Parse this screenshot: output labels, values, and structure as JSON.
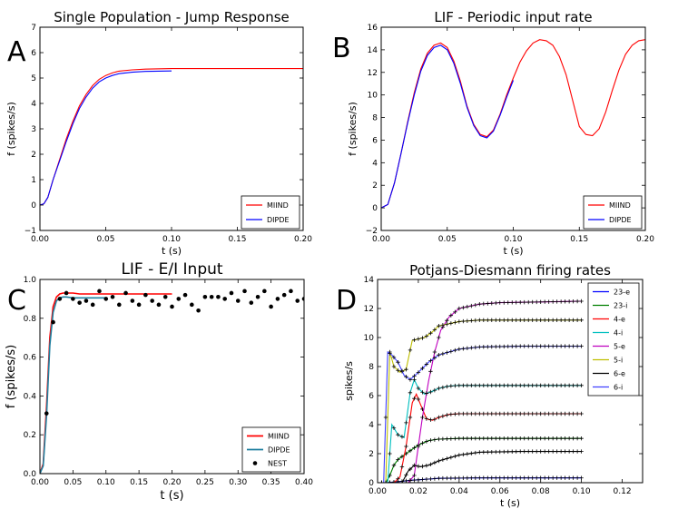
{
  "chart_data": [
    {
      "id": "A",
      "type": "line",
      "panel_label": "A",
      "title": "Single Population - Jump Response",
      "xlabel": "t (s)",
      "ylabel": "f (spikes/s)",
      "xlim": [
        0.0,
        0.2
      ],
      "ylim": [
        -1,
        7
      ],
      "xticks": [
        0.0,
        0.05,
        0.1,
        0.15,
        0.2
      ],
      "xtick_labels": [
        "0.00",
        "0.05",
        "0.10",
        "0.15",
        "0.20"
      ],
      "yticks": [
        -1,
        0,
        1,
        2,
        3,
        4,
        5,
        6,
        7
      ],
      "ytick_labels": [
        "−1",
        "0",
        "1",
        "2",
        "3",
        "4",
        "5",
        "6",
        "7"
      ],
      "legend_position": "bottom-right",
      "series": [
        {
          "name": "MIIND",
          "color": "#ff0000",
          "x": [
            0,
            0.003,
            0.006,
            0.01,
            0.015,
            0.02,
            0.025,
            0.03,
            0.035,
            0.04,
            0.045,
            0.05,
            0.055,
            0.06,
            0.07,
            0.08,
            0.1,
            0.12,
            0.15,
            0.2
          ],
          "y": [
            0,
            0.05,
            0.3,
            1.0,
            1.8,
            2.6,
            3.3,
            3.9,
            4.35,
            4.7,
            4.95,
            5.1,
            5.2,
            5.27,
            5.32,
            5.35,
            5.37,
            5.37,
            5.37,
            5.37
          ]
        },
        {
          "name": "DIPDE",
          "color": "#0000ff",
          "x": [
            0,
            0.003,
            0.006,
            0.01,
            0.015,
            0.02,
            0.025,
            0.03,
            0.035,
            0.04,
            0.045,
            0.05,
            0.055,
            0.06,
            0.07,
            0.08,
            0.09,
            0.1
          ],
          "y": [
            0,
            0.05,
            0.3,
            1.0,
            1.75,
            2.5,
            3.2,
            3.8,
            4.25,
            4.6,
            4.85,
            5.0,
            5.1,
            5.17,
            5.23,
            5.26,
            5.27,
            5.28
          ]
        }
      ]
    },
    {
      "id": "B",
      "type": "line",
      "panel_label": "B",
      "title": "LIF - Periodic input rate",
      "xlabel": "t (s)",
      "ylabel": "f (spikes/s)",
      "xlim": [
        0.0,
        0.2
      ],
      "ylim": [
        -2,
        16
      ],
      "xticks": [
        0.0,
        0.05,
        0.1,
        0.15,
        0.2
      ],
      "xtick_labels": [
        "0.00",
        "0.05",
        "0.10",
        "0.15",
        "0.20"
      ],
      "yticks": [
        -2,
        0,
        2,
        4,
        6,
        8,
        10,
        12,
        14,
        16
      ],
      "ytick_labels": [
        "−2",
        "0",
        "2",
        "4",
        "6",
        "8",
        "10",
        "12",
        "14",
        "16"
      ],
      "legend_position": "bottom-right",
      "series": [
        {
          "name": "MIIND",
          "color": "#ff0000",
          "x": [
            0,
            0.005,
            0.01,
            0.015,
            0.02,
            0.025,
            0.03,
            0.035,
            0.04,
            0.045,
            0.05,
            0.055,
            0.06,
            0.065,
            0.07,
            0.075,
            0.08,
            0.085,
            0.09,
            0.095,
            0.1,
            0.105,
            0.11,
            0.115,
            0.12,
            0.125,
            0.13,
            0.135,
            0.14,
            0.145,
            0.15,
            0.155,
            0.16,
            0.165,
            0.17,
            0.175,
            0.18,
            0.185,
            0.19,
            0.195,
            0.2
          ],
          "y": [
            0,
            0.3,
            2.2,
            4.8,
            7.6,
            10.2,
            12.3,
            13.7,
            14.4,
            14.6,
            14.2,
            13.0,
            11.2,
            9.0,
            7.4,
            6.5,
            6.3,
            6.9,
            8.3,
            10.0,
            11.5,
            12.9,
            13.9,
            14.6,
            14.9,
            14.8,
            14.4,
            13.4,
            11.8,
            9.5,
            7.2,
            6.5,
            6.4,
            7.0,
            8.5,
            10.4,
            12.2,
            13.6,
            14.4,
            14.8,
            14.9
          ]
        },
        {
          "name": "DIPDE",
          "color": "#0000ff",
          "x": [
            0,
            0.005,
            0.01,
            0.015,
            0.02,
            0.025,
            0.03,
            0.035,
            0.04,
            0.045,
            0.05,
            0.055,
            0.06,
            0.065,
            0.07,
            0.075,
            0.08,
            0.085,
            0.09,
            0.095,
            0.1
          ],
          "y": [
            0,
            0.3,
            2.2,
            4.8,
            7.5,
            10.0,
            12.1,
            13.5,
            14.2,
            14.4,
            14.0,
            12.8,
            11.0,
            8.9,
            7.3,
            6.4,
            6.2,
            6.8,
            8.2,
            9.8,
            11.3
          ]
        }
      ]
    },
    {
      "id": "C",
      "type": "line",
      "panel_label": "C",
      "title": "LIF - E/I Input",
      "xlabel": "t (s)",
      "ylabel": "f (spikes/s)",
      "xlim": [
        0.0,
        0.4
      ],
      "ylim": [
        0.0,
        1.0
      ],
      "xticks": [
        0.0,
        0.05,
        0.1,
        0.15,
        0.2,
        0.25,
        0.3,
        0.35,
        0.4
      ],
      "xtick_labels": [
        "0.00",
        "0.05",
        "0.10",
        "0.15",
        "0.20",
        "0.25",
        "0.30",
        "0.35",
        "0.40"
      ],
      "yticks": [
        0.0,
        0.2,
        0.4,
        0.6,
        0.8,
        1.0
      ],
      "ytick_labels": [
        "0.0",
        "0.2",
        "0.4",
        "0.6",
        "0.8",
        "1.0"
      ],
      "legend_position": "bottom-right",
      "series": [
        {
          "name": "MIIND",
          "color": "#ff0000",
          "style": "line",
          "x": [
            0,
            0.005,
            0.01,
            0.015,
            0.02,
            0.025,
            0.03,
            0.035,
            0.04,
            0.05,
            0.06,
            0.08,
            0.1,
            0.15,
            0.2
          ],
          "y": [
            0,
            0.05,
            0.35,
            0.7,
            0.86,
            0.91,
            0.925,
            0.93,
            0.93,
            0.93,
            0.925,
            0.925,
            0.925,
            0.925,
            0.925
          ]
        },
        {
          "name": "DIPDE",
          "color": "#1f7f9f",
          "style": "line",
          "x": [
            0,
            0.005,
            0.01,
            0.015,
            0.02,
            0.025,
            0.03,
            0.035,
            0.04,
            0.05,
            0.06,
            0.07,
            0.08,
            0.09,
            0.1
          ],
          "y": [
            0,
            0.04,
            0.3,
            0.66,
            0.83,
            0.89,
            0.905,
            0.91,
            0.91,
            0.905,
            0.905,
            0.905,
            0.905,
            0.905,
            0.905
          ]
        },
        {
          "name": "NEST",
          "color": "#000000",
          "style": "points",
          "x": [
            0.01,
            0.02,
            0.03,
            0.04,
            0.05,
            0.06,
            0.07,
            0.08,
            0.09,
            0.1,
            0.11,
            0.12,
            0.13,
            0.14,
            0.15,
            0.16,
            0.17,
            0.18,
            0.19,
            0.2,
            0.21,
            0.22,
            0.23,
            0.24,
            0.25,
            0.26,
            0.27,
            0.28,
            0.29,
            0.3,
            0.31,
            0.32,
            0.33,
            0.34,
            0.35,
            0.36,
            0.37,
            0.38,
            0.39,
            0.4
          ],
          "y": [
            0.31,
            0.78,
            0.9,
            0.93,
            0.9,
            0.88,
            0.89,
            0.87,
            0.94,
            0.9,
            0.91,
            0.87,
            0.93,
            0.89,
            0.87,
            0.92,
            0.89,
            0.87,
            0.91,
            0.86,
            0.9,
            0.92,
            0.87,
            0.84,
            0.91,
            0.91,
            0.91,
            0.9,
            0.93,
            0.89,
            0.94,
            0.88,
            0.91,
            0.94,
            0.86,
            0.9,
            0.92,
            0.94,
            0.89,
            0.9
          ]
        }
      ]
    },
    {
      "id": "D",
      "type": "line",
      "panel_label": "D",
      "title": "Potjans-Diesmann firing rates",
      "xlabel": "t (s)",
      "ylabel": "spikes/s",
      "xlim": [
        0.0,
        0.13
      ],
      "ylim": [
        0,
        14
      ],
      "xticks": [
        0.0,
        0.02,
        0.04,
        0.06,
        0.08,
        0.1,
        0.12
      ],
      "xtick_labels": [
        "0.00",
        "0.02",
        "0.04",
        "0.06",
        "0.08",
        "0.10",
        "0.12"
      ],
      "yticks": [
        0,
        2,
        4,
        6,
        8,
        10,
        12,
        14
      ],
      "ytick_labels": [
        "0",
        "2",
        "4",
        "6",
        "8",
        "10",
        "12",
        "14"
      ],
      "legend_position": "top-right",
      "nest_marker": "+",
      "series": [
        {
          "name": "23-e",
          "color": "#0000ff",
          "x": [
            0,
            0.003,
            0.006,
            0.009,
            0.012,
            0.015,
            0.02,
            0.025,
            0.03,
            0.04,
            0.05,
            0.07,
            0.1
          ],
          "y": [
            0,
            0,
            0.02,
            0.06,
            0.1,
            0.15,
            0.2,
            0.25,
            0.3,
            0.32,
            0.33,
            0.33,
            0.33
          ]
        },
        {
          "name": "23-i",
          "color": "#008000",
          "x": [
            0,
            0.004,
            0.006,
            0.008,
            0.01,
            0.013,
            0.016,
            0.02,
            0.025,
            0.03,
            0.04,
            0.05,
            0.07,
            0.1
          ],
          "y": [
            0,
            0,
            0.5,
            1.2,
            1.6,
            1.9,
            2.2,
            2.6,
            2.9,
            3.0,
            3.05,
            3.05,
            3.05,
            3.05
          ]
        },
        {
          "name": "4-e",
          "color": "#ff0000",
          "x": [
            0,
            0.008,
            0.011,
            0.014,
            0.017,
            0.019,
            0.021,
            0.024,
            0.027,
            0.03,
            0.035,
            0.04,
            0.05,
            0.07,
            0.1
          ],
          "y": [
            0,
            0,
            0.4,
            2.5,
            5.5,
            6.1,
            5.4,
            4.4,
            4.3,
            4.5,
            4.7,
            4.75,
            4.75,
            4.75,
            4.75
          ]
        },
        {
          "name": "4-i",
          "color": "#00bfbf",
          "x": [
            0,
            0.005,
            0.007,
            0.01,
            0.013,
            0.016,
            0.018,
            0.02,
            0.023,
            0.027,
            0.03,
            0.035,
            0.04,
            0.05,
            0.07,
            0.1
          ],
          "y": [
            0,
            0,
            4.0,
            3.3,
            3.1,
            6.2,
            7.1,
            6.5,
            6.1,
            6.3,
            6.5,
            6.65,
            6.7,
            6.7,
            6.7,
            6.7
          ]
        },
        {
          "name": "5-e",
          "color": "#bf00bf",
          "x": [
            0,
            0.015,
            0.018,
            0.02,
            0.022,
            0.025,
            0.028,
            0.031,
            0.035,
            0.04,
            0.05,
            0.06,
            0.08,
            0.1
          ],
          "y": [
            0,
            0,
            0.5,
            2.5,
            4.5,
            7.0,
            9.0,
            10.5,
            11.4,
            12.0,
            12.3,
            12.4,
            12.45,
            12.5
          ]
        },
        {
          "name": "5-i",
          "color": "#bfbf00",
          "x": [
            0,
            0.004,
            0.006,
            0.008,
            0.011,
            0.014,
            0.017,
            0.02,
            0.023,
            0.027,
            0.03,
            0.04,
            0.05,
            0.07,
            0.1
          ],
          "y": [
            0,
            0,
            9.0,
            8.0,
            7.6,
            7.8,
            9.8,
            9.9,
            10.0,
            10.4,
            10.8,
            11.1,
            11.2,
            11.2,
            11.2
          ]
        },
        {
          "name": "6-e",
          "color": "#000000",
          "x": [
            0,
            0.012,
            0.015,
            0.018,
            0.021,
            0.025,
            0.03,
            0.04,
            0.05,
            0.07,
            0.1
          ],
          "y": [
            0,
            0,
            0.8,
            1.2,
            1.1,
            1.2,
            1.5,
            1.9,
            2.1,
            2.15,
            2.15
          ]
        },
        {
          "name": "6-i",
          "color": "#4040ff",
          "x": [
            0,
            0.003,
            0.005,
            0.007,
            0.01,
            0.013,
            0.016,
            0.02,
            0.025,
            0.03,
            0.04,
            0.05,
            0.07,
            0.1
          ],
          "y": [
            0,
            0,
            9.0,
            8.8,
            8.3,
            7.4,
            7.1,
            7.6,
            8.3,
            8.8,
            9.2,
            9.35,
            9.4,
            9.4
          ]
        }
      ]
    }
  ]
}
